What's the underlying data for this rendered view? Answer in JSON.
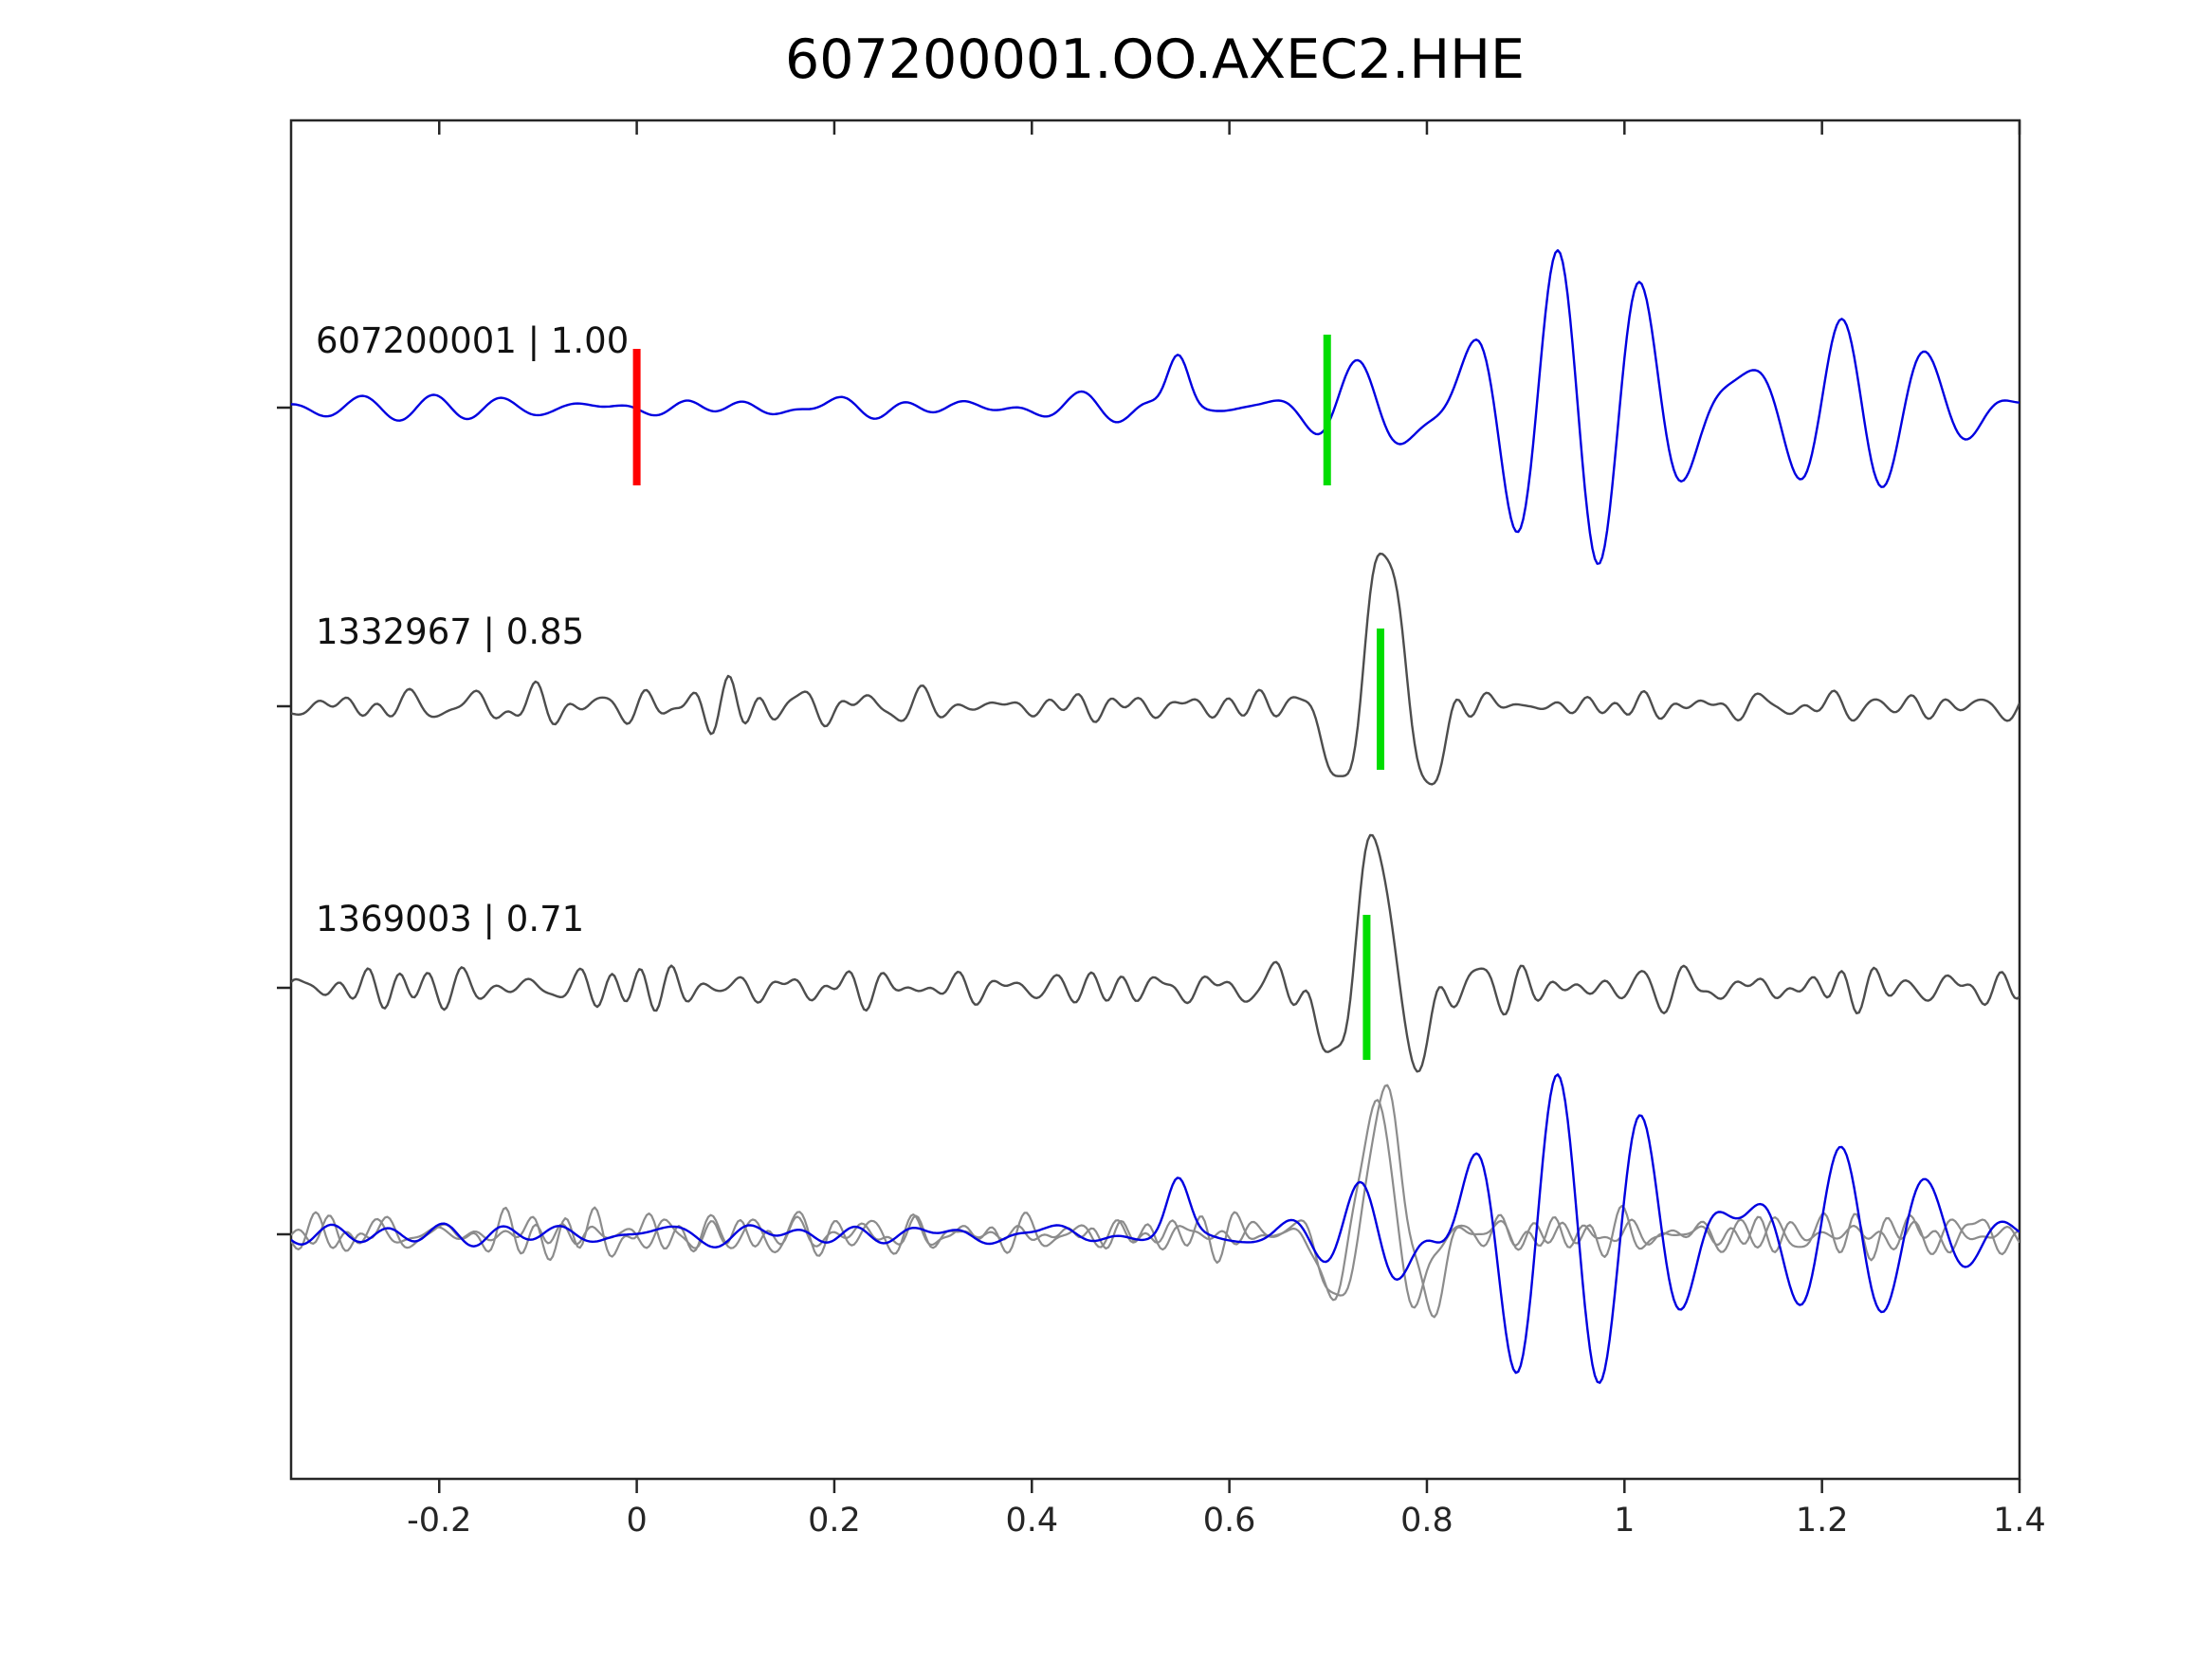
{
  "title": "607200001.OO.AXEC2.HHE",
  "colors": {
    "target_blue": "#0000e0",
    "template_gray": "#4d4d4d",
    "overlay_gray": "#8c8c8c",
    "pick_green": "#00dd00",
    "pick_red": "#ff0000",
    "axis": "#262626"
  },
  "axis": {
    "x_range": [
      -0.35,
      1.4
    ],
    "x_ticks": [
      -0.2,
      0,
      0.2,
      0.4,
      0.6,
      0.8,
      1,
      1.2,
      1.4
    ],
    "x_tick_labels": [
      "-0.2",
      "0",
      "0.2",
      "0.4",
      "0.6",
      "0.8",
      "1",
      "1.2",
      "1.4"
    ]
  },
  "chart_data": {
    "type": "line",
    "title": "607200001.OO.AXEC2.HHE",
    "xlabel": "",
    "ylabel": "",
    "x_range": [
      -0.35,
      1.4
    ],
    "grid": false,
    "legend": "none",
    "description": "Seismic waveform correlation view: target trace 607200001 (blue) on top, two matched template traces (gray) with correlation coefficients, and an overlay of all traces at the bottom. Green bars mark aligned picks near t=0.7-0.75; the red bar marks the reference time t=0 on the target trace.",
    "rows": [
      {
        "label": "607200001 | 1.00",
        "event_id": "607200001",
        "correlation": 1.0,
        "markers": [
          {
            "name": "reference-pick",
            "x": 0.0,
            "color": "pick_red"
          },
          {
            "name": "aligned-pick",
            "x": 0.699,
            "color": "pick_green"
          }
        ],
        "traces": [
          {
            "color": "target_blue",
            "synth": {
              "seed": 11,
              "noise_amp": 17,
              "band": [
                7,
                20
              ],
              "bump": {
                "t": 0.548,
                "amp": 55,
                "width": 0.013,
                "freq": 9
              },
              "event": {
                "t0": 0.715,
                "amp": 155,
                "f1": 10.5,
                "f2": 13.8,
                "ramp": 0.028,
                "peak": 0.95,
                "sigma": 0.26
              }
            }
          }
        ]
      },
      {
        "label": "1332967 | 0.85",
        "event_id": "1332967",
        "correlation": 0.85,
        "markers": [
          {
            "name": "aligned-pick",
            "x": 0.753,
            "color": "pick_green"
          }
        ],
        "traces": [
          {
            "color": "template_gray",
            "synth": {
              "seed": 23,
              "noise_amp": 32,
              "band": [
                13,
                38
              ],
              "spike": {
                "t0": 0.757,
                "amp": 168,
                "width": 0.04,
                "period": 0.105
              }
            }
          }
        ]
      },
      {
        "label": "1369003 | 0.71",
        "event_id": "1369003",
        "correlation": 0.71,
        "markers": [
          {
            "name": "aligned-pick",
            "x": 0.739,
            "color": "pick_green"
          }
        ],
        "traces": [
          {
            "color": "template_gray",
            "synth": {
              "seed": 57,
              "noise_amp": 28,
              "band": [
                13,
                40
              ],
              "spike": {
                "t0": 0.747,
                "amp": 160,
                "width": 0.038,
                "period": 0.1
              }
            }
          }
        ]
      },
      {
        "label": "",
        "event_id": "",
        "correlation": null,
        "markers": [],
        "traces": [
          {
            "color": "overlay_gray",
            "synth": {
              "seed": 83,
              "noise_amp": 30,
              "band": [
                13,
                38
              ],
              "spike": {
                "t0": 0.757,
                "amp": 150,
                "width": 0.04,
                "period": 0.105
              }
            }
          },
          {
            "color": "overlay_gray",
            "synth": {
              "seed": 101,
              "noise_amp": 28,
              "band": [
                13,
                40
              ],
              "spike": {
                "t0": 0.747,
                "amp": 135,
                "width": 0.038,
                "period": 0.1
              }
            }
          },
          {
            "color": "target_blue",
            "synth": {
              "seed": 131,
              "noise_amp": 17,
              "band": [
                7,
                20
              ],
              "bump": {
                "t": 0.548,
                "amp": 50,
                "width": 0.013,
                "freq": 9
              },
              "event": {
                "t0": 0.715,
                "amp": 155,
                "f1": 10.5,
                "f2": 13.8,
                "ramp": 0.028,
                "peak": 0.95,
                "sigma": 0.26
              }
            }
          }
        ]
      }
    ]
  }
}
